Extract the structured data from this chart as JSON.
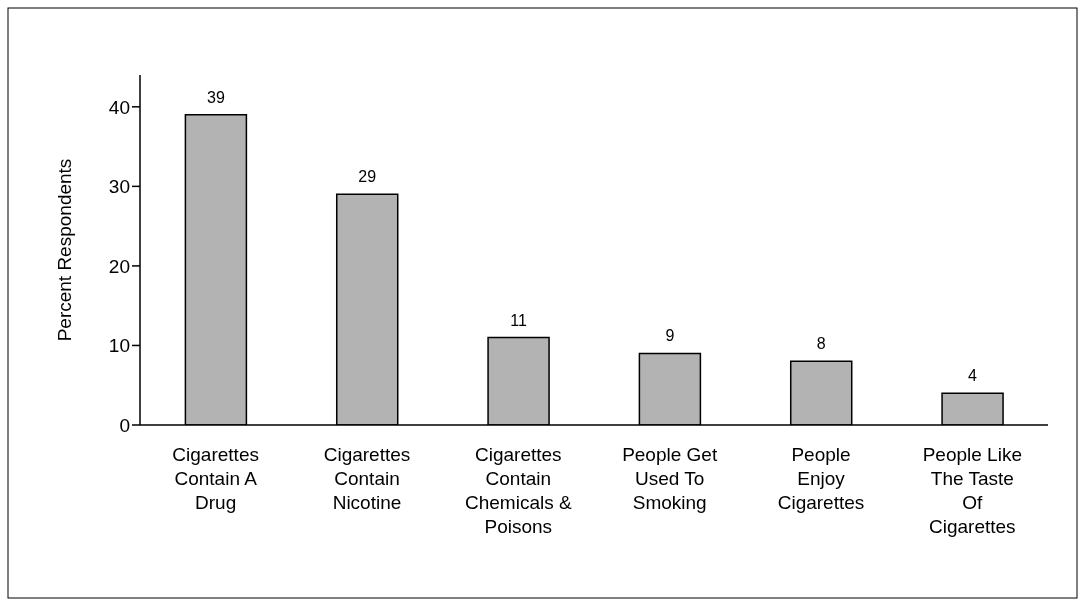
{
  "chart_data": {
    "type": "bar",
    "ylabel": "Percent Respondents",
    "categories": [
      "Cigarettes Contain A Drug",
      "Cigarettes Contain Nicotine",
      "Cigarettes Contain Chemicals & Poisons",
      "People Get Used To Smoking",
      "People Enjoy Cigarettes",
      "People Like The Taste Of Cigarettes"
    ],
    "values": [
      39,
      29,
      11,
      9,
      8,
      4
    ],
    "color": "#b3b3b3",
    "ylim": [
      0,
      44
    ],
    "yticks": [
      0,
      10,
      20,
      30,
      40
    ],
    "grid": false,
    "data_labels": true
  }
}
